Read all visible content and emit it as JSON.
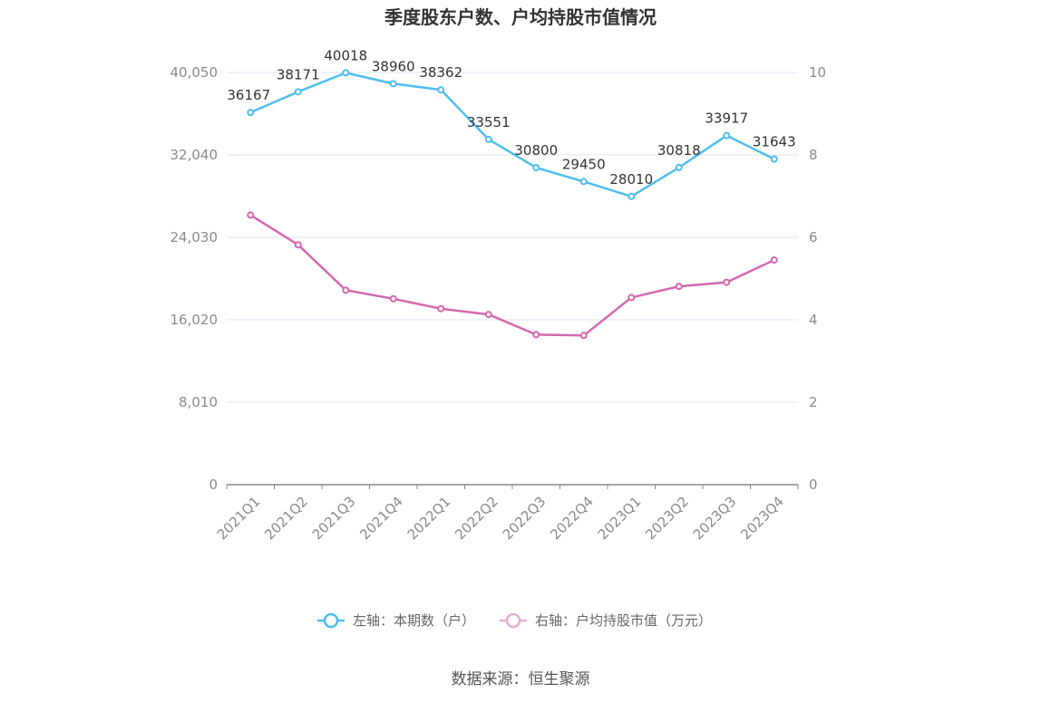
{
  "chart_data": {
    "type": "line",
    "title": "季度股东户数、户均持股市值情况",
    "categories": [
      "2021Q1",
      "2021Q2",
      "2021Q3",
      "2021Q4",
      "2022Q1",
      "2022Q2",
      "2022Q3",
      "2022Q4",
      "2023Q1",
      "2023Q2",
      "2023Q3",
      "2023Q4"
    ],
    "left_axis": {
      "ticks": [
        "0",
        "8,010",
        "16,020",
        "24,030",
        "32,040",
        "40,050"
      ],
      "range": [
        0,
        40050
      ]
    },
    "right_axis": {
      "ticks": [
        "0",
        "2",
        "4",
        "6",
        "8",
        "10"
      ],
      "range": [
        0,
        10
      ]
    },
    "series": [
      {
        "name": "左轴：本期数（户）",
        "axis": "left",
        "color": "#4fbdee",
        "values": [
          36167,
          38171,
          40018,
          38960,
          38362,
          33551,
          30800,
          29450,
          28010,
          30818,
          33917,
          31643
        ],
        "labels": [
          "36167",
          "38171",
          "40018",
          "38960",
          "38362",
          "33551",
          "30800",
          "29450",
          "28010",
          "30818",
          "33917",
          "31643"
        ]
      },
      {
        "name": "右轴：户均持股市值（万元）",
        "axis": "right",
        "color": "#d467b0",
        "values": [
          6.54,
          5.82,
          4.72,
          4.51,
          4.27,
          4.13,
          3.64,
          3.62,
          4.54,
          4.81,
          4.91,
          5.45
        ]
      }
    ],
    "grid": true,
    "legend_position": "bottom"
  },
  "source": "数据来源：恒生聚源"
}
